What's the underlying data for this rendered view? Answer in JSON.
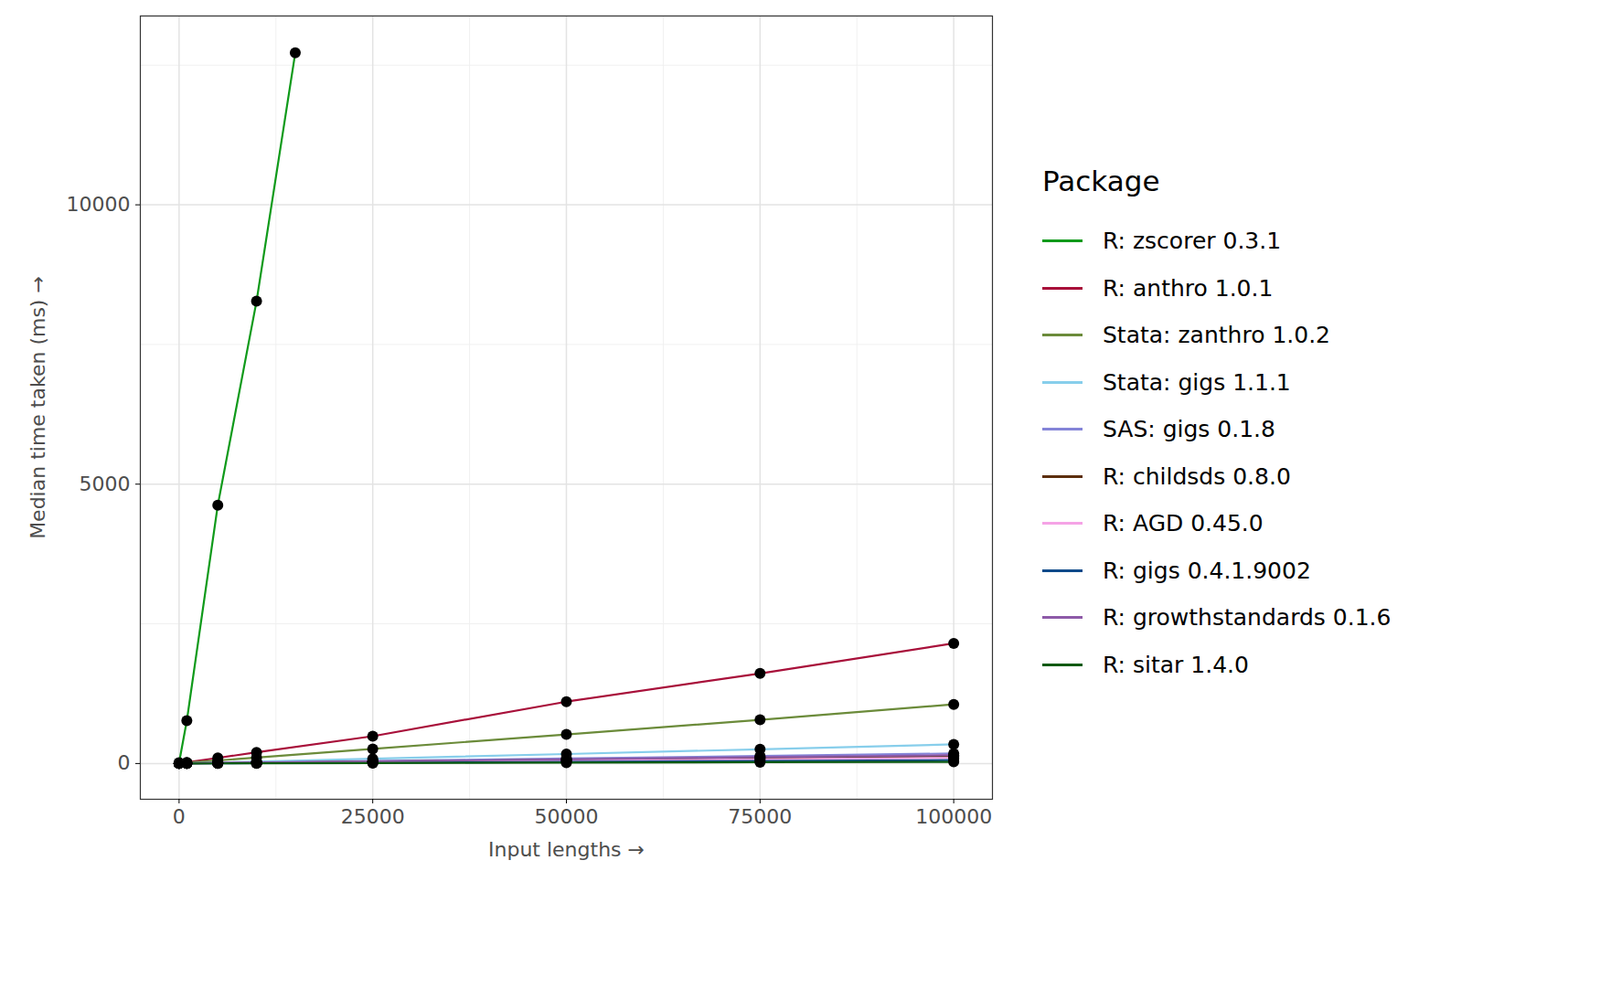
{
  "chart_data": {
    "type": "line",
    "x_label": "Input lengths",
    "y_label": "Median time taken (ms)",
    "legend_title": "Package",
    "legend": "right",
    "grid": true,
    "marker": "circle",
    "xlim": [
      -5000,
      105000
    ],
    "xticks": [
      0,
      25000,
      50000,
      75000,
      100000
    ],
    "ylim": [
      -640,
      13380
    ],
    "yticks": [
      0,
      5000,
      10000
    ],
    "series": [
      {
        "name": "R: zscorer 0.3.1",
        "color": "#0f9a1a",
        "x": [
          1,
          1000,
          5000,
          10000,
          15000
        ],
        "values": [
          15,
          766,
          4625,
          8274,
          12720
        ]
      },
      {
        "name": "R: anthro 1.0.1",
        "color": "#a8103a",
        "x": [
          1,
          1000,
          5000,
          10000,
          25000,
          50000,
          75000,
          100000
        ],
        "values": [
          5,
          20,
          100,
          200,
          489,
          1107,
          1612,
          2150
        ]
      },
      {
        "name": "Stata: zanthro 1.0.2",
        "color": "#6b8b3a",
        "x": [
          1,
          1000,
          5000,
          10000,
          25000,
          50000,
          75000,
          100000
        ],
        "values": [
          5,
          15,
          55,
          105,
          261,
          521,
          782,
          1059
        ]
      },
      {
        "name": "Stata: gigs 1.1.1",
        "color": "#87ceeb",
        "x": [
          1,
          1000,
          5000,
          10000,
          25000,
          50000,
          75000,
          100000
        ],
        "values": [
          2,
          5,
          18,
          35,
          85,
          170,
          255,
          342
        ]
      },
      {
        "name": "SAS: gigs 0.1.8",
        "color": "#8484d8",
        "x": [
          1,
          1000,
          5000,
          10000,
          25000,
          50000,
          75000,
          100000
        ],
        "values": [
          2,
          4,
          10,
          20,
          45,
          90,
          135,
          180
        ]
      },
      {
        "name": "R: childsds 0.8.0",
        "color": "#5c2e0c",
        "x": [
          1,
          1000,
          5000,
          10000,
          25000,
          50000,
          75000,
          100000
        ],
        "values": [
          2,
          3,
          7,
          14,
          33,
          65,
          98,
          130
        ]
      },
      {
        "name": "R: AGD 0.45.0",
        "color": "#f5a3e6",
        "x": [
          1,
          1000,
          5000,
          10000,
          25000,
          50000,
          75000,
          100000
        ],
        "values": [
          2,
          3,
          6,
          11,
          25,
          50,
          75,
          100
        ]
      },
      {
        "name": "R: gigs 0.4.1.9002",
        "color": "#0d4a8a",
        "x": [
          1,
          1000,
          5000,
          10000,
          25000,
          50000,
          75000,
          100000
        ],
        "values": [
          1,
          2,
          4,
          7,
          15,
          30,
          45,
          60
        ]
      },
      {
        "name": "R: growthstandards 0.1.6",
        "color": "#8e5aa8",
        "x": [
          1,
          1000,
          5000,
          10000,
          25000,
          50000,
          75000,
          100000
        ],
        "values": [
          2,
          3,
          8,
          16,
          38,
          75,
          113,
          150
        ]
      },
      {
        "name": "R: sitar 1.4.0",
        "color": "#0b5a12",
        "x": [
          1,
          1000,
          5000,
          10000,
          25000,
          50000,
          75000,
          100000
        ],
        "values": [
          1,
          1,
          2,
          4,
          8,
          15,
          23,
          30
        ]
      }
    ]
  }
}
